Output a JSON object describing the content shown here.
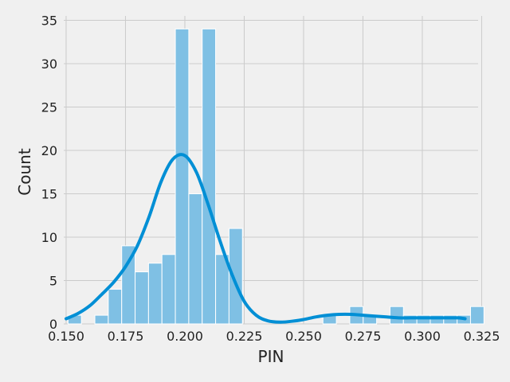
{
  "chart_data": {
    "type": "bar",
    "subtype": "histogram-with-kde",
    "xlabel": "PIN",
    "ylabel": "Count",
    "xlim": [
      0.149,
      0.3235
    ],
    "ylim": [
      0,
      35.5
    ],
    "xticks": [
      0.15,
      0.175,
      0.2,
      0.225,
      0.25,
      0.275,
      0.3,
      0.325
    ],
    "xtick_labels": [
      "0.150",
      "0.175",
      "0.200",
      "0.225",
      "0.250",
      "0.275",
      "0.300",
      "0.325"
    ],
    "yticks": [
      0,
      5,
      10,
      15,
      20,
      25,
      30,
      35
    ],
    "ytick_labels": [
      "0",
      "5",
      "10",
      "15",
      "20",
      "25",
      "30",
      "35"
    ],
    "grid": true,
    "bin_start": 0.1508,
    "bin_width": 0.00565,
    "counts": [
      1,
      0,
      1,
      4,
      9,
      6,
      7,
      8,
      34,
      15,
      34,
      8,
      11,
      0,
      0,
      0,
      0,
      0,
      0,
      1,
      0,
      2,
      1,
      0,
      2,
      1,
      1,
      1,
      1,
      1,
      2
    ],
    "kde": {
      "x": [
        0.15,
        0.155,
        0.16,
        0.165,
        0.17,
        0.175,
        0.18,
        0.185,
        0.19,
        0.195,
        0.2,
        0.205,
        0.21,
        0.215,
        0.22,
        0.225,
        0.23,
        0.235,
        0.24,
        0.245,
        0.25,
        0.255,
        0.26,
        0.265,
        0.27,
        0.275,
        0.28,
        0.285,
        0.29,
        0.295,
        0.3,
        0.305,
        0.31,
        0.315,
        0.318
      ],
      "y": [
        0.6,
        1.2,
        2.1,
        3.4,
        4.8,
        6.6,
        9.0,
        12.4,
        16.4,
        19.0,
        19.4,
        17.4,
        13.6,
        9.4,
        5.6,
        2.6,
        1.0,
        0.35,
        0.2,
        0.3,
        0.5,
        0.8,
        1.0,
        1.1,
        1.1,
        1.0,
        0.9,
        0.8,
        0.7,
        0.7,
        0.7,
        0.7,
        0.7,
        0.7,
        0.6
      ]
    },
    "colors": {
      "bar_fill": "#7fc0e4",
      "kde_line": "#008fd5",
      "background": "#f0f0f0",
      "grid": "#cbcbcb"
    }
  }
}
